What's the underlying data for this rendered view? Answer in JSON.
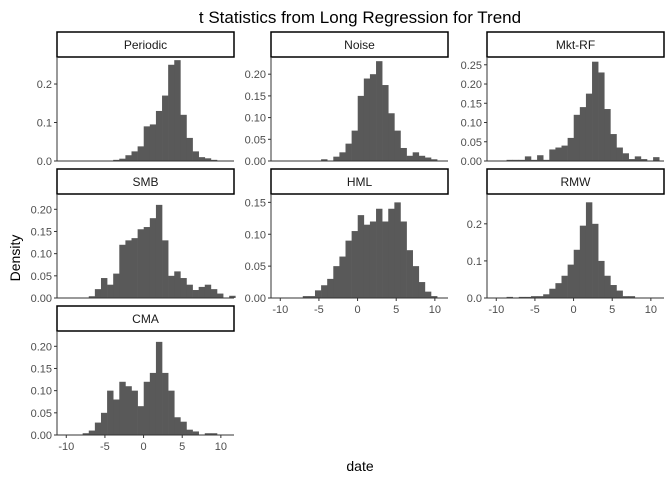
{
  "chart_data": {
    "type": "histogram-facets",
    "title": "t Statistics from Long Regression for Trend",
    "xlabel": "date",
    "ylabel": "Density",
    "xlim": [
      -11.2,
      11.7
    ],
    "xticks": [
      -10,
      -5,
      0,
      5,
      10
    ],
    "bin_width": 0.79,
    "bin_start": -10.25,
    "grid": false,
    "colors": {
      "bar": "#595959",
      "axis": "#333333",
      "strip_border": "#000000"
    },
    "panels": [
      {
        "name": "Periodic",
        "ylim": [
          0,
          0.265
        ],
        "yticks": [
          0,
          0.1,
          0.2
        ],
        "ytick_labels": [
          "0.0",
          "0.1",
          "0.2"
        ],
        "show_xaxis": false,
        "density": [
          0,
          0,
          0,
          0,
          0,
          0,
          0,
          0,
          0.003,
          0.006,
          0.015,
          0.025,
          0.038,
          0.09,
          0.095,
          0.13,
          0.17,
          0.25,
          0.262,
          0.12,
          0.06,
          0.025,
          0.01,
          0.007,
          0.003,
          0,
          0,
          0,
          0
        ]
      },
      {
        "name": "Noise",
        "ylim": [
          0,
          0.235
        ],
        "yticks": [
          0,
          0.05,
          0.1,
          0.15,
          0.2
        ],
        "ytick_labels": [
          "0.00",
          "0.05",
          "0.10",
          "0.15",
          "0.20"
        ],
        "show_xaxis": false,
        "density": [
          0,
          0,
          0,
          0,
          0,
          0,
          0,
          0.004,
          0,
          0.01,
          0.02,
          0.04,
          0.07,
          0.15,
          0.19,
          0.2,
          0.23,
          0.175,
          0.11,
          0.07,
          0.03,
          0.012,
          0.02,
          0.012,
          0.008,
          0.004,
          0,
          0,
          0
        ]
      },
      {
        "name": "Mkt-RF",
        "ylim": [
          0,
          0.265
        ],
        "yticks": [
          0,
          0.05,
          0.1,
          0.15,
          0.2,
          0.25
        ],
        "ytick_labels": [
          "0.00",
          "0.05",
          "0.10",
          "0.15",
          "0.20",
          "0.25"
        ],
        "show_xaxis": false,
        "density": [
          0,
          0,
          0.003,
          0.003,
          0.003,
          0.012,
          0.003,
          0.015,
          0.003,
          0.03,
          0.035,
          0.04,
          0.06,
          0.12,
          0.14,
          0.175,
          0.258,
          0.23,
          0.135,
          0.07,
          0.035,
          0.02,
          0.005,
          0.012,
          0.005,
          0,
          0.01,
          0,
          0
        ]
      },
      {
        "name": "SMB",
        "ylim": [
          0,
          0.23
        ],
        "yticks": [
          0,
          0.05,
          0.1,
          0.15,
          0.2
        ],
        "ytick_labels": [
          "0.00",
          "0.05",
          "0.10",
          "0.15",
          "0.20"
        ],
        "show_xaxis": false,
        "density": [
          0,
          0,
          0,
          0,
          0.004,
          0.02,
          0.045,
          0.03,
          0.055,
          0.12,
          0.13,
          0.135,
          0.155,
          0.16,
          0.18,
          0.21,
          0.13,
          0.05,
          0.06,
          0.045,
          0.03,
          0.018,
          0.025,
          0.03,
          0.02,
          0.01,
          0,
          0.005,
          0
        ]
      },
      {
        "name": "HML",
        "ylim": [
          0,
          0.16
        ],
        "yticks": [
          0,
          0.05,
          0.1,
          0.15
        ],
        "ytick_labels": [
          "0.00",
          "0.05",
          "0.10",
          "0.15"
        ],
        "show_xaxis": true,
        "density": [
          0,
          0,
          0,
          0,
          0.003,
          0.003,
          0.012,
          0.02,
          0.03,
          0.05,
          0.065,
          0.09,
          0.105,
          0.13,
          0.115,
          0.12,
          0.14,
          0.12,
          0.14,
          0.15,
          0.12,
          0.075,
          0.05,
          0.025,
          0.01,
          0.003,
          0,
          0,
          0
        ]
      },
      {
        "name": "RMW",
        "ylim": [
          0,
          0.275
        ],
        "yticks": [
          0,
          0.1,
          0.2
        ],
        "ytick_labels": [
          "0.0",
          "0.1",
          "0.2"
        ],
        "show_xaxis": true,
        "density": [
          0,
          0,
          0.003,
          0,
          0.003,
          0.003,
          0.005,
          0.005,
          0.01,
          0.025,
          0.04,
          0.06,
          0.09,
          0.13,
          0.195,
          0.258,
          0.2,
          0.1,
          0.06,
          0.035,
          0.02,
          0.005,
          0.005,
          0,
          0,
          0,
          0,
          0,
          0
        ]
      },
      {
        "name": "CMA",
        "ylim": [
          0,
          0.23
        ],
        "yticks": [
          0,
          0.05,
          0.1,
          0.15,
          0.2
        ],
        "ytick_labels": [
          "0.00",
          "0.05",
          "0.10",
          "0.15",
          "0.20"
        ],
        "show_xaxis": true,
        "density": [
          0,
          0,
          0,
          0.004,
          0.01,
          0.028,
          0.05,
          0.1,
          0.08,
          0.12,
          0.11,
          0.1,
          0.065,
          0.12,
          0.14,
          0.21,
          0.14,
          0.1,
          0.04,
          0.03,
          0.012,
          0.008,
          0,
          0.004,
          0.004,
          0,
          0,
          0,
          0
        ]
      }
    ]
  }
}
